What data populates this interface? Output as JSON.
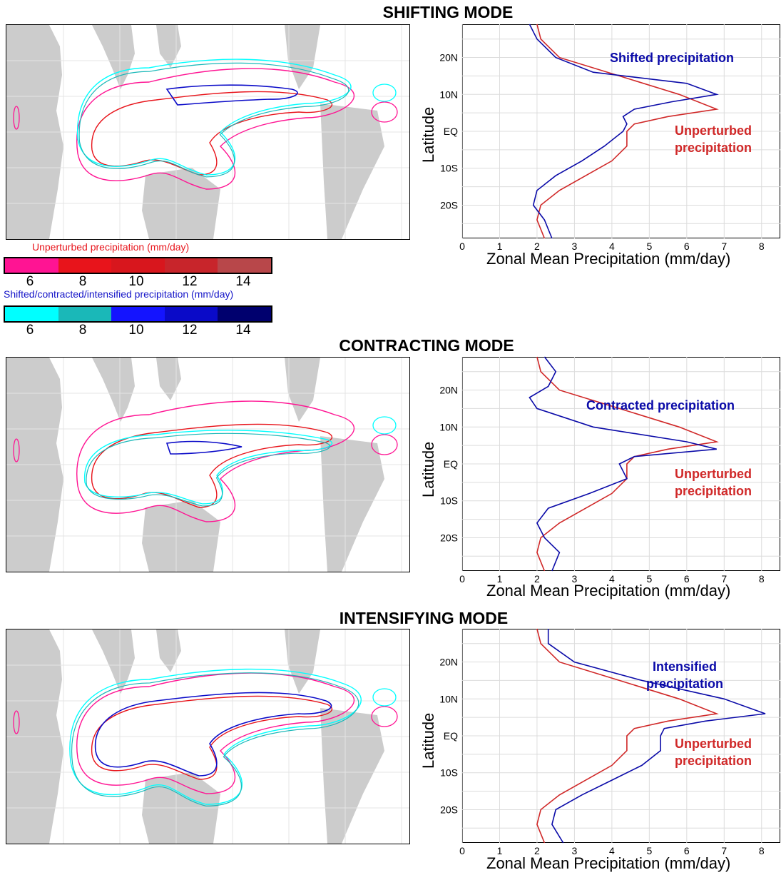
{
  "colorbars": {
    "unperturbed": {
      "label": "Unperturbed precipitation (mm/day)",
      "label_color": "#e8141b",
      "ticks": [
        "6",
        "8",
        "10",
        "12",
        "14"
      ],
      "colors": [
        "#ff1493",
        "#e8141b",
        "#d8161d",
        "#c8252b",
        "#b8474a"
      ]
    },
    "perturbed": {
      "label": "Shifted/contracted/intensified precipitation (mm/day)",
      "label_color": "#1414c8",
      "ticks": [
        "6",
        "8",
        "10",
        "12",
        "14"
      ],
      "colors": [
        "#00ffff",
        "#1ab8b8",
        "#1414ff",
        "#0a0ac8",
        "#00006e"
      ]
    }
  },
  "colors": {
    "unperturbed": "#d02828",
    "perturbed": "#0a0aa8",
    "land": "#cccccc"
  },
  "profile_axes": {
    "xlabel": "Zonal Mean Precipitation (mm/day)",
    "ylabel": "Latitude",
    "xticks": [
      "0",
      "1",
      "2",
      "3",
      "4",
      "5",
      "6",
      "7",
      "8"
    ],
    "yticks": [
      "20N",
      "10N",
      "EQ",
      "10S",
      "20S"
    ]
  },
  "panels": [
    {
      "title": "SHIFTING MODE",
      "annot_perturbed": "Shifted precipitation",
      "annot_unperturbed": "Unperturbed precipitation"
    },
    {
      "title": "CONTRACTING MODE",
      "annot_perturbed": "Contracted precipitation",
      "annot_unperturbed": "Unperturbed precipitation"
    },
    {
      "title": "INTENSIFYING MODE",
      "annot_perturbed": "Intensified precipitation",
      "annot_unperturbed": "Unperturbed precipitation"
    }
  ],
  "chart_data": [
    {
      "type": "line",
      "title": "SHIFTING MODE",
      "xlabel": "Zonal Mean Precipitation (mm/day)",
      "ylabel": "Latitude",
      "xlim": [
        0,
        8.5
      ],
      "ylim": [
        -29,
        29
      ],
      "series": [
        {
          "name": "Unperturbed precipitation",
          "lat": [
            29,
            25,
            20,
            15,
            10,
            6,
            4,
            2,
            0,
            -4,
            -8,
            -12,
            -16,
            -20,
            -24,
            -29
          ],
          "values": [
            2.0,
            2.1,
            2.6,
            4.2,
            5.8,
            6.8,
            5.5,
            4.6,
            4.4,
            4.4,
            4.0,
            3.3,
            2.6,
            2.1,
            2.0,
            2.2
          ]
        },
        {
          "name": "Shifted precipitation",
          "lat": [
            29,
            25,
            20,
            16,
            13,
            10,
            8,
            6,
            4,
            2,
            0,
            -4,
            -8,
            -12,
            -16,
            -20,
            -24,
            -29
          ],
          "values": [
            1.8,
            2.0,
            2.5,
            3.5,
            6.0,
            6.8,
            5.6,
            4.6,
            4.3,
            4.4,
            4.3,
            3.8,
            3.2,
            2.5,
            2.0,
            1.9,
            2.2,
            2.4
          ]
        }
      ]
    },
    {
      "type": "line",
      "title": "CONTRACTING MODE",
      "xlabel": "Zonal Mean Precipitation (mm/day)",
      "ylabel": "Latitude",
      "xlim": [
        0,
        8.5
      ],
      "ylim": [
        -29,
        29
      ],
      "series": [
        {
          "name": "Unperturbed precipitation",
          "lat": [
            29,
            25,
            20,
            15,
            10,
            6,
            4,
            2,
            0,
            -4,
            -8,
            -12,
            -16,
            -20,
            -24,
            -29
          ],
          "values": [
            2.0,
            2.1,
            2.6,
            4.2,
            5.8,
            6.8,
            5.5,
            4.6,
            4.4,
            4.4,
            4.0,
            3.3,
            2.6,
            2.1,
            2.0,
            2.2
          ]
        },
        {
          "name": "Contracted precipitation",
          "lat": [
            29,
            25,
            21,
            18,
            15,
            10,
            6,
            4,
            2,
            0,
            -4,
            -8,
            -12,
            -16,
            -20,
            -24,
            -29
          ],
          "values": [
            2.2,
            2.5,
            2.3,
            1.8,
            2.0,
            3.5,
            6.0,
            6.8,
            4.6,
            4.2,
            4.4,
            3.4,
            2.3,
            2.0,
            2.2,
            2.6,
            2.4
          ]
        }
      ]
    },
    {
      "type": "line",
      "title": "INTENSIFYING MODE",
      "xlabel": "Zonal Mean Precipitation (mm/day)",
      "ylabel": "Latitude",
      "xlim": [
        0,
        8.5
      ],
      "ylim": [
        -29,
        29
      ],
      "series": [
        {
          "name": "Unperturbed precipitation",
          "lat": [
            29,
            25,
            20,
            15,
            10,
            6,
            4,
            2,
            0,
            -4,
            -8,
            -12,
            -16,
            -20,
            -24,
            -29
          ],
          "values": [
            2.0,
            2.1,
            2.6,
            4.2,
            5.8,
            6.8,
            5.5,
            4.6,
            4.4,
            4.4,
            4.0,
            3.3,
            2.6,
            2.1,
            2.0,
            2.2
          ]
        },
        {
          "name": "Intensified precipitation",
          "lat": [
            29,
            25,
            20,
            15,
            10,
            6,
            4,
            2,
            0,
            -4,
            -8,
            -12,
            -16,
            -20,
            -24,
            -29
          ],
          "values": [
            2.3,
            2.3,
            3.0,
            4.8,
            7.0,
            8.1,
            6.5,
            5.4,
            5.3,
            5.3,
            4.8,
            4.0,
            3.2,
            2.5,
            2.4,
            2.7
          ]
        }
      ]
    }
  ]
}
